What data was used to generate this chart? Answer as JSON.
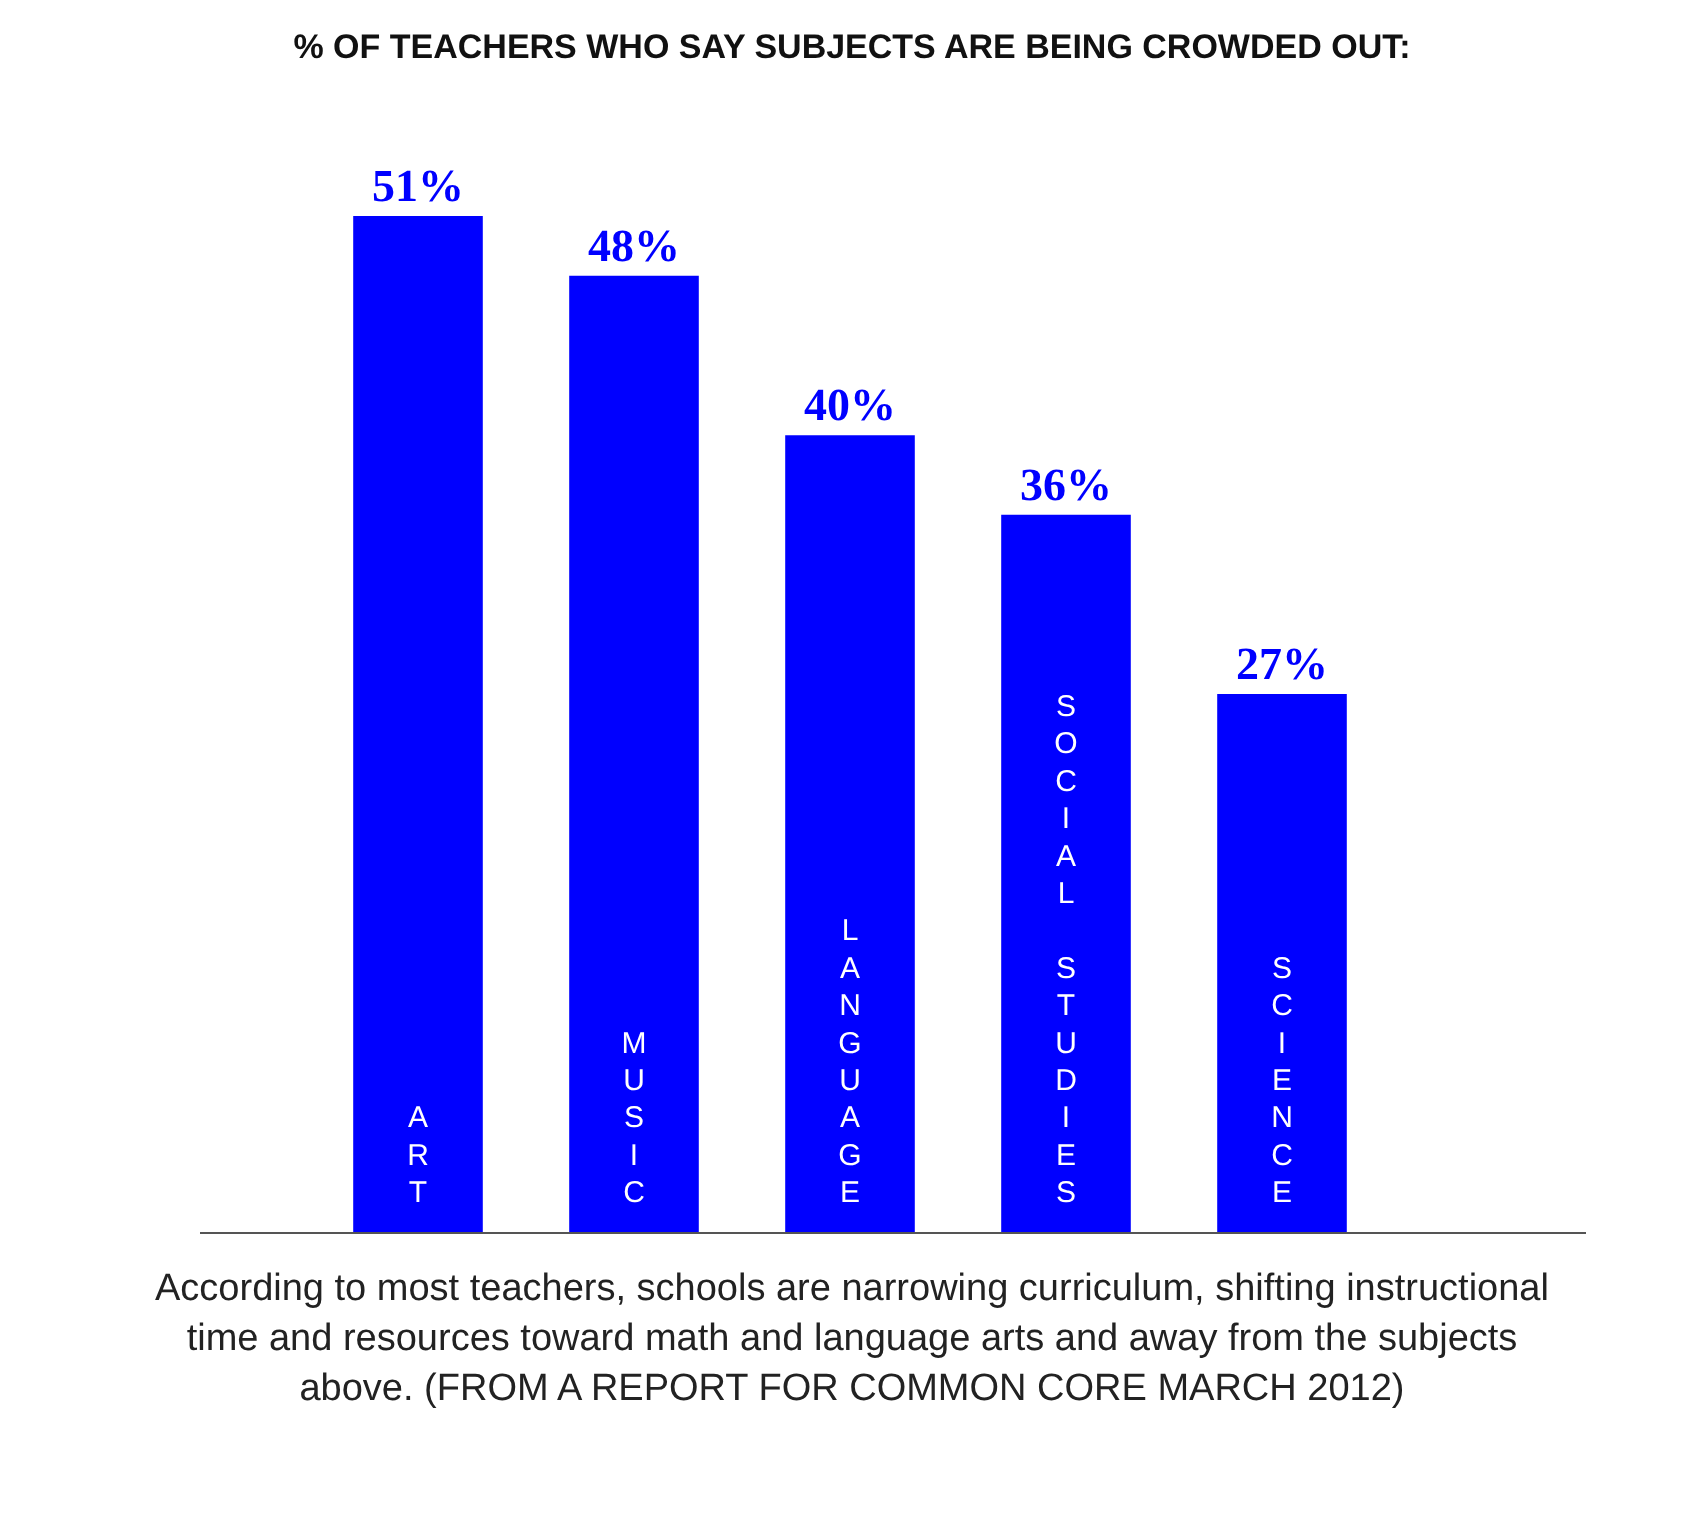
{
  "chart_data": {
    "type": "bar",
    "title": "% OF TEACHERS WHO SAY SUBJECTS ARE BEING CROWDED OUT:",
    "categories": [
      "ART",
      "MUSIC",
      "LANGUAGE",
      "SOCIAL STUDIES",
      "SCIENCE"
    ],
    "values": [
      51,
      48,
      40,
      36,
      27
    ],
    "value_labels": [
      "51%",
      "48%",
      "40%",
      "36%",
      "27%"
    ],
    "color": "#0000ff",
    "legend": false,
    "annotations": [
      "According to most teachers, schools are narrowing curriculum, shifting instructional time and resources toward math and language arts and away from the subjects above. (FROM A REPORT FOR COMMON CORE MARCH 2012)"
    ]
  }
}
